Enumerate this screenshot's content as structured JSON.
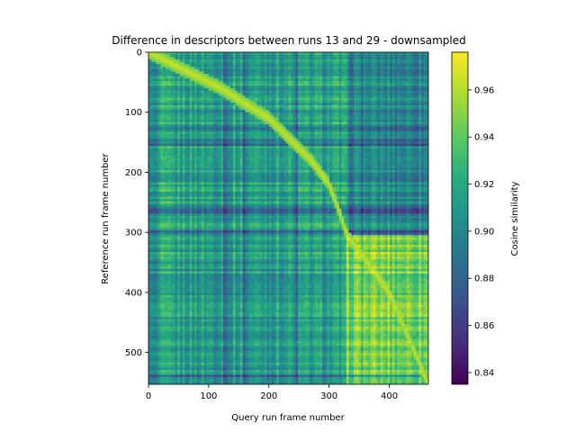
{
  "chart_data": {
    "type": "heatmap",
    "title": "Difference in descriptors between runs 13 and 29 - downsampled",
    "xlabel": "Query run frame number",
    "ylabel": "Reference run frame number",
    "x_range": [
      0,
      465
    ],
    "y_range": [
      0,
      553
    ],
    "y_inverted": true,
    "x_ticks": [
      0,
      100,
      200,
      300,
      400
    ],
    "y_ticks": [
      0,
      100,
      200,
      300,
      400,
      500
    ],
    "colorbar": {
      "label": "Cosine similarity",
      "range": [
        0.835,
        0.976
      ],
      "ticks": [
        0.84,
        0.86,
        0.88,
        0.9,
        0.92,
        0.94,
        0.96
      ],
      "tick_labels": [
        "0.84",
        "0.86",
        "0.88",
        "0.90",
        "0.92",
        "0.94",
        "0.96"
      ],
      "colormap": "viridis"
    },
    "diagonal_path": [
      [
        0,
        0
      ],
      [
        60,
        30
      ],
      [
        120,
        60
      ],
      [
        200,
        110
      ],
      [
        270,
        180
      ],
      [
        300,
        220
      ],
      [
        315,
        260
      ],
      [
        330,
        305
      ],
      [
        400,
        400
      ],
      [
        465,
        553
      ]
    ],
    "diagonal_value": 0.965,
    "background_value": 0.915,
    "regions": [
      {
        "x": [
          330,
          465
        ],
        "y": [
          305,
          553
        ],
        "value": 0.948,
        "name": "bright-lower-right-block"
      },
      {
        "x": [
          330,
          465
        ],
        "y": [
          0,
          305
        ],
        "value": 0.9,
        "name": "dark-upper-right-block"
      }
    ],
    "dark_rows": [
      128,
      150,
      208,
      262,
      300,
      540
    ],
    "dark_cols": [
      10,
      130,
      160,
      245,
      470
    ]
  }
}
